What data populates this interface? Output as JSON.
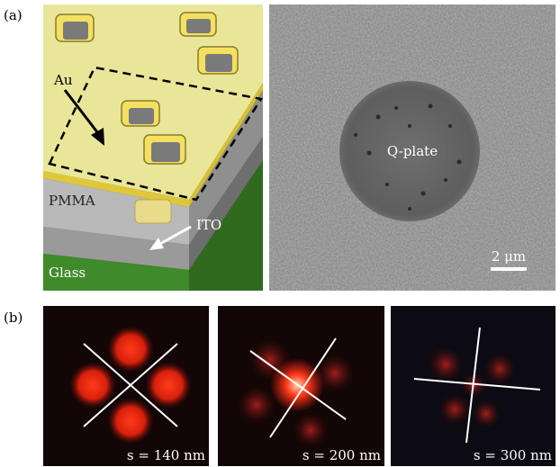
{
  "panel_a": {
    "label": "(a)",
    "schematic": {
      "au": "Au",
      "pmma": "PMMA",
      "ito": "ITO",
      "glass": "Glass"
    },
    "sem": {
      "q_plate": "Q-plate",
      "scale_bar": "2 μm"
    }
  },
  "panel_b": {
    "label": "(b)",
    "images": [
      {
        "caption": "s = 140 nm"
      },
      {
        "caption": "s = 200 nm"
      },
      {
        "caption": "s = 300 nm"
      }
    ]
  }
}
